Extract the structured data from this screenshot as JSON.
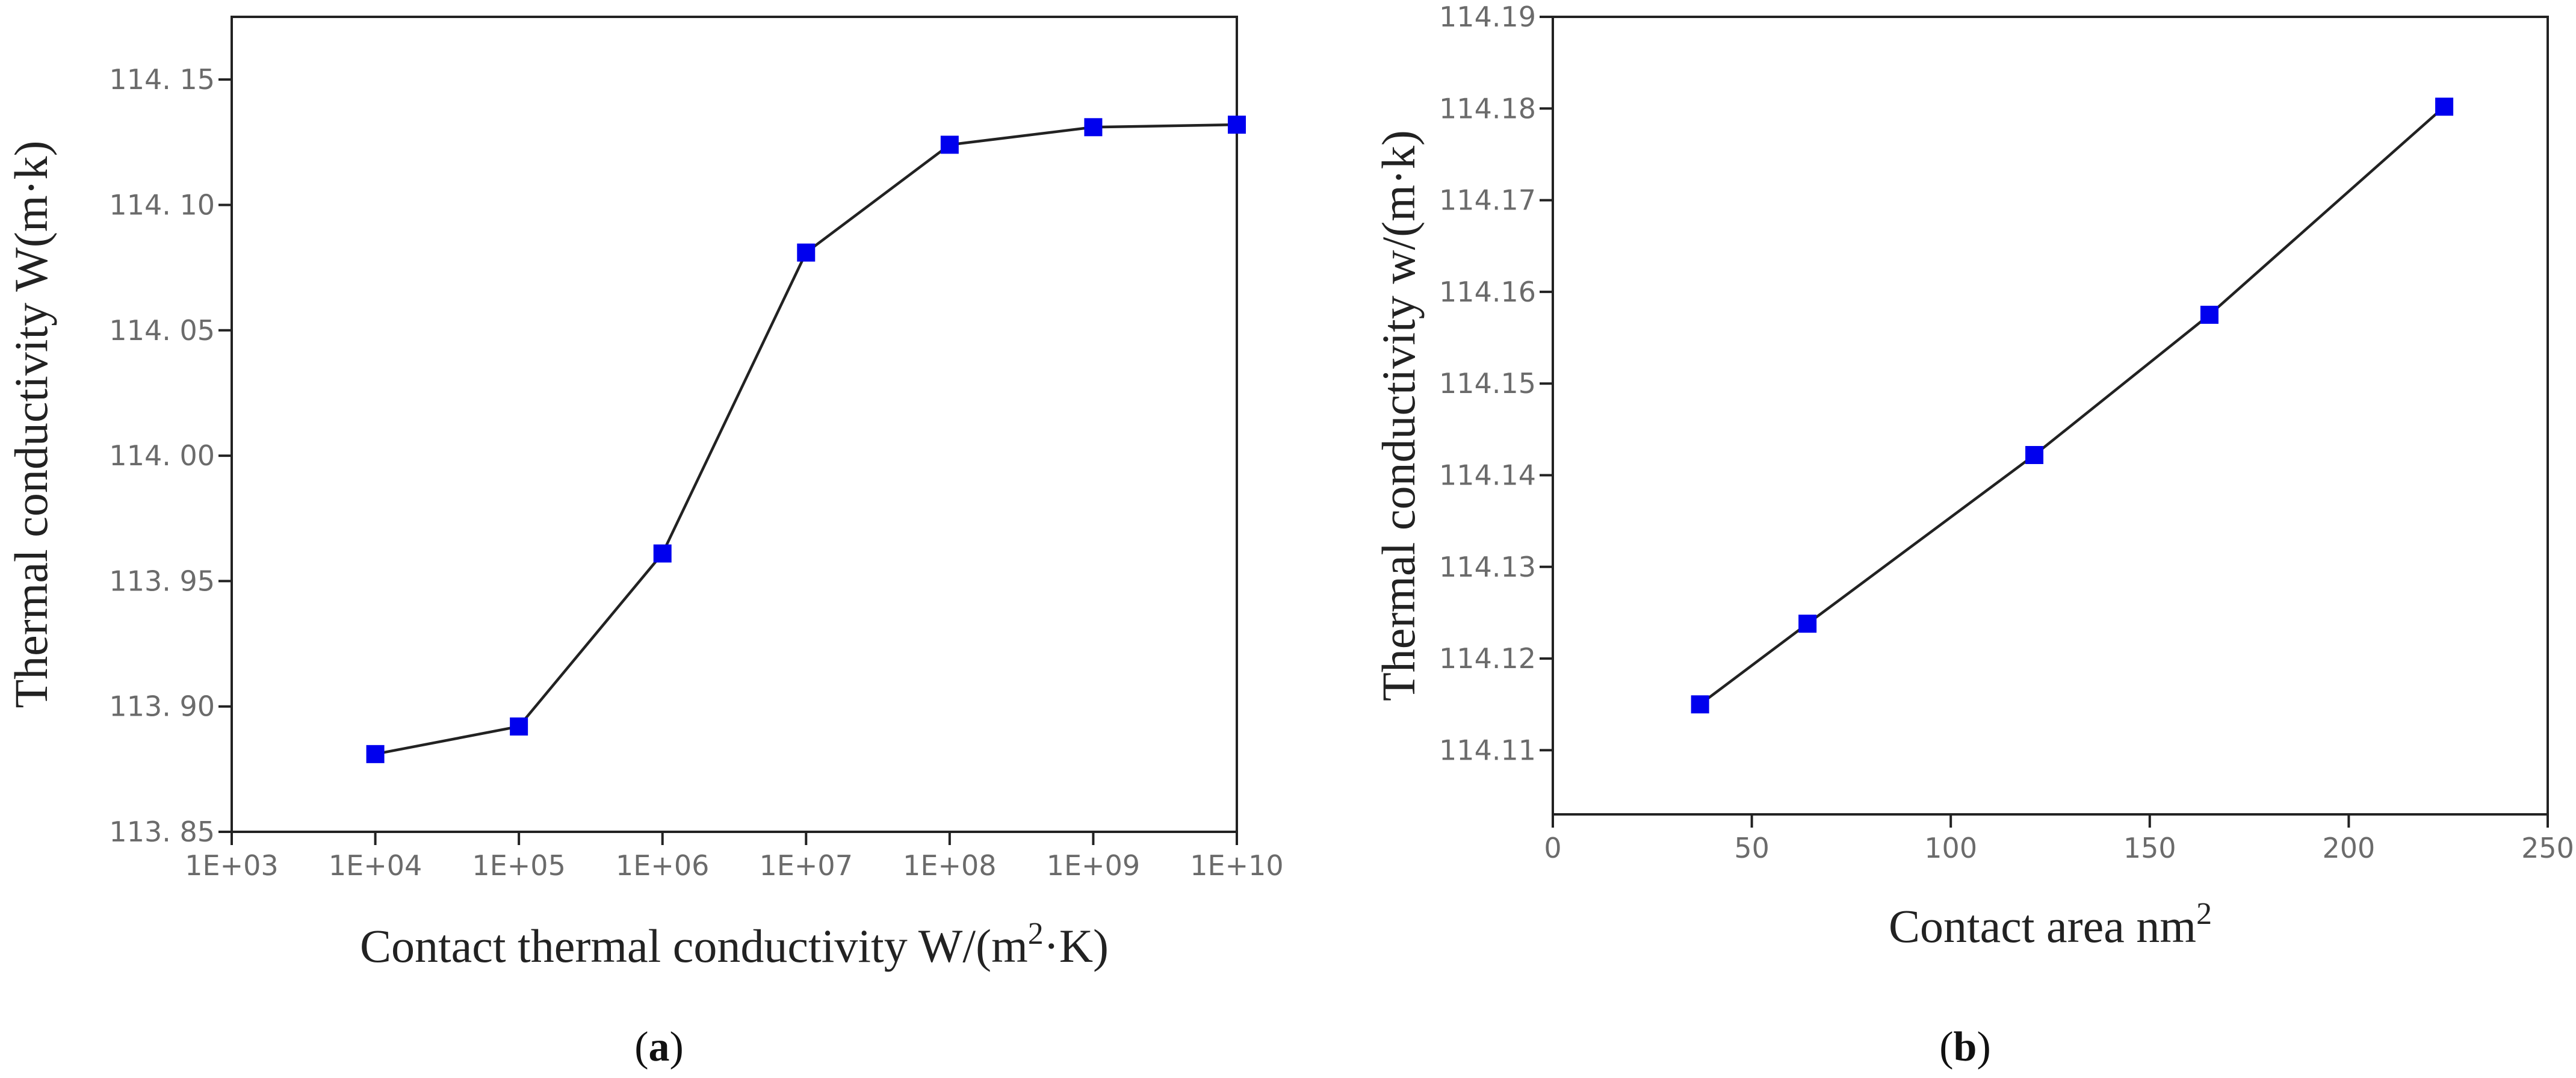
{
  "chart_data": [
    {
      "type": "line",
      "panel_label": "a",
      "xscale": "log",
      "x": [
        10000,
        100000,
        1000000,
        10000000,
        100000000,
        1000000000,
        10000000000
      ],
      "y": [
        113.881,
        113.892,
        113.961,
        114.081,
        114.124,
        114.131,
        114.132
      ],
      "xlim": [
        1000,
        10000000000
      ],
      "ylim": [
        113.85,
        114.175
      ],
      "xticks": [
        1000,
        10000,
        100000,
        1000000,
        10000000,
        100000000,
        1000000000,
        10000000000
      ],
      "xtick_labels": [
        "1E+03",
        "1E+04",
        "1E+05",
        "1E+06",
        "1E+07",
        "1E+08",
        "1E+09",
        "1E+10"
      ],
      "yticks": [
        113.85,
        113.9,
        113.95,
        114.0,
        114.05,
        114.1,
        114.15
      ],
      "ytick_labels": [
        "113. 85",
        "113. 90",
        "113. 95",
        "114. 00",
        "114. 05",
        "114. 10",
        "114. 15"
      ],
      "xlabel_main": "Contact thermal conductivity W/(m",
      "xlabel_sup": "2",
      "xlabel_tail": "·K)",
      "ylabel": "Thermal conductivity W(m·k)",
      "grid": false,
      "marker": "square",
      "marker_color": "#0000ee",
      "line_color": "#222222"
    },
    {
      "type": "line",
      "panel_label": "b",
      "xscale": "linear",
      "x": [
        37,
        64,
        121,
        165,
        224
      ],
      "y": [
        114.115,
        114.1238,
        114.1422,
        114.1575,
        114.1802
      ],
      "xlim": [
        0,
        250
      ],
      "ylim": [
        114.103,
        114.19
      ],
      "xticks": [
        0,
        50,
        100,
        150,
        200,
        250
      ],
      "xtick_labels": [
        "0",
        "50",
        "100",
        "150",
        "200",
        "250"
      ],
      "yticks": [
        114.11,
        114.12,
        114.13,
        114.14,
        114.15,
        114.16,
        114.17,
        114.18,
        114.19
      ],
      "ytick_labels": [
        "114.11",
        "114.12",
        "114.13",
        "114.14",
        "114.15",
        "114.16",
        "114.17",
        "114.18",
        "114.19"
      ],
      "xlabel_main": "Contact area nm",
      "xlabel_sup": "2",
      "xlabel_tail": "",
      "ylabel": "Thermal conductivity w/(m·k)",
      "grid": false,
      "marker": "square",
      "marker_color": "#0000ee",
      "line_color": "#222222"
    }
  ]
}
